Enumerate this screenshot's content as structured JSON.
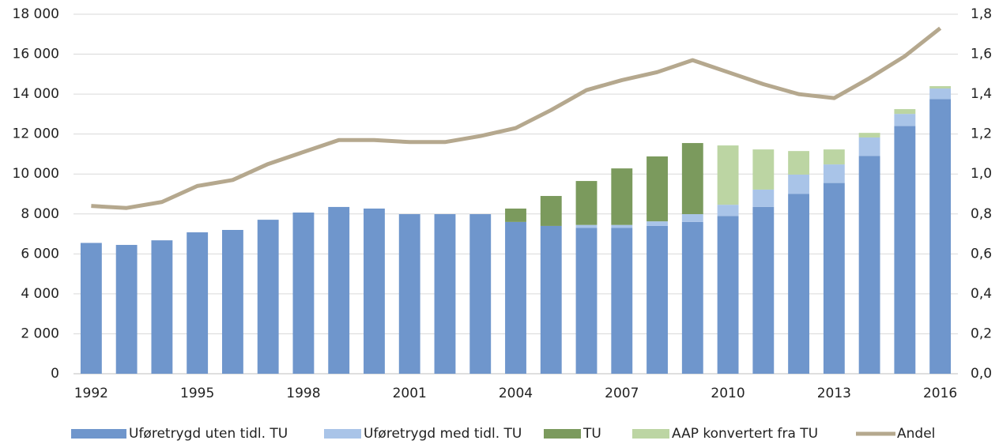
{
  "chart_data": {
    "type": "bar",
    "stacked": true,
    "categories": [
      "1992",
      null,
      null,
      "1995",
      null,
      null,
      "1998",
      null,
      null,
      "2001",
      null,
      null,
      "2004",
      null,
      null,
      "2007",
      null,
      null,
      "2010",
      null,
      null,
      "2013",
      null,
      null,
      "2016"
    ],
    "series": [
      {
        "name": "Uføretrygd uten tidl. TU",
        "color": "#6f96cc",
        "values": [
          6550,
          6450,
          6680,
          7080,
          7200,
          7710,
          8070,
          8350,
          8270,
          7990,
          7990,
          7990,
          7600,
          7400,
          7300,
          7300,
          7400,
          7600,
          7900,
          8350,
          9000,
          9550,
          10900,
          12400,
          13750
        ]
      },
      {
        "name": "Uføretrygd med tidl. TU",
        "color": "#a9c4e8",
        "values": [
          0,
          0,
          0,
          0,
          0,
          0,
          0,
          0,
          0,
          0,
          0,
          0,
          0,
          0,
          150,
          150,
          230,
          390,
          560,
          870,
          970,
          930,
          930,
          610,
          530
        ]
      },
      {
        "name": "TU",
        "color": "#7b9a5d",
        "values": [
          0,
          0,
          0,
          0,
          0,
          0,
          0,
          0,
          0,
          0,
          0,
          0,
          670,
          1500,
          2200,
          2830,
          3250,
          3560,
          0,
          0,
          0,
          0,
          0,
          0,
          0
        ]
      },
      {
        "name": "AAP konvertert fra TU",
        "color": "#bcd5a3",
        "values": [
          0,
          0,
          0,
          0,
          0,
          0,
          0,
          0,
          0,
          0,
          0,
          0,
          0,
          0,
          0,
          0,
          0,
          0,
          2970,
          2010,
          1180,
          750,
          230,
          240,
          120
        ]
      },
      {
        "name": "Andel",
        "color": "#b5a88e",
        "type": "line",
        "axis": "y2",
        "values": [
          0.84,
          0.83,
          0.86,
          0.94,
          0.97,
          1.05,
          1.11,
          1.17,
          1.17,
          1.16,
          1.16,
          1.19,
          1.23,
          1.32,
          1.42,
          1.47,
          1.51,
          1.57,
          1.51,
          1.45,
          1.4,
          1.38,
          1.48,
          1.59,
          1.73
        ]
      }
    ],
    "ylim": [
      0,
      18000
    ],
    "yticks": [
      0,
      {
        "value": 2000,
        "label": "2 000"
      },
      {
        "value": 4000,
        "label": "4 000"
      },
      {
        "value": 6000,
        "label": "6 000"
      },
      {
        "value": 8000,
        "label": "8 000"
      },
      {
        "value": 10000,
        "label": "10 000"
      },
      {
        "value": 12000,
        "label": "12 000"
      },
      {
        "value": 14000,
        "label": "14 000"
      },
      {
        "value": 16000,
        "label": "16 000"
      },
      {
        "value": 18000,
        "label": "18 000"
      }
    ],
    "y2lim": [
      0,
      1.8
    ],
    "y2ticks": [
      {
        "value": 0,
        "label": "0,0"
      },
      {
        "value": 0.2,
        "label": "0,2"
      },
      {
        "value": 0.4,
        "label": "0,4"
      },
      {
        "value": 0.6,
        "label": "0,6"
      },
      {
        "value": 0.8,
        "label": "0,8"
      },
      {
        "value": 1,
        "label": "1,0"
      },
      {
        "value": 1.2,
        "label": "1,2"
      },
      {
        "value": 1.4,
        "label": "1,4"
      },
      {
        "value": 1.6,
        "label": "1,6"
      },
      {
        "value": 1.8,
        "label": "1,8"
      }
    ],
    "grid": true,
    "legend": "bottom"
  }
}
